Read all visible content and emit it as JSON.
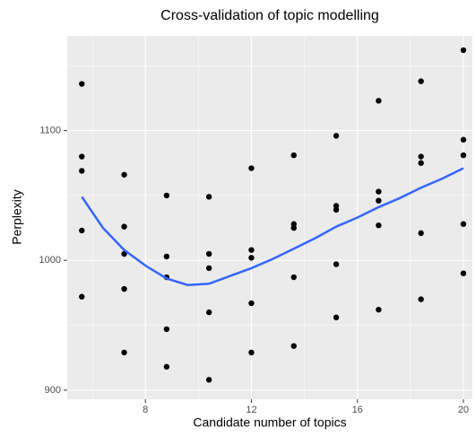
{
  "chart_data": {
    "type": "scatter",
    "title": "Cross-validation of topic modelling",
    "x_label": "Candidate number of topics",
    "y_label": "Perplexity",
    "xlim": [
      5.05,
      20.34
    ],
    "ylim": [
      893,
      1173
    ],
    "xticks": [
      8,
      12,
      16,
      20
    ],
    "yticks": [
      900,
      1000,
      1100
    ],
    "minor_xticks": [
      6,
      10,
      14,
      18
    ],
    "minor_yticks": [
      950,
      1050,
      1150
    ],
    "grid": true,
    "point_color": "#000000",
    "points": {
      "x": [
        5.6,
        5.6,
        5.6,
        5.6,
        5.6,
        7.2,
        7.2,
        7.2,
        7.2,
        7.2,
        8.8,
        8.8,
        8.8,
        8.8,
        8.8,
        10.4,
        10.4,
        10.4,
        10.4,
        10.4,
        12,
        12,
        12,
        12,
        12,
        13.6,
        13.6,
        13.6,
        13.6,
        13.6,
        15.2,
        15.2,
        15.2,
        15.2,
        15.2,
        16.8,
        16.8,
        16.8,
        16.8,
        16.8,
        18.4,
        18.4,
        18.4,
        18.4,
        18.4,
        20,
        20,
        20,
        20,
        20
      ],
      "values": [
        1136,
        1080,
        1069,
        1023,
        972,
        1066,
        1026,
        1005,
        978,
        929,
        1050,
        1003,
        987,
        947,
        918,
        1049,
        1005,
        994,
        960,
        908,
        1071,
        1008,
        1002,
        967,
        929,
        1081,
        1028,
        1025,
        987,
        934,
        1096,
        1042,
        1039,
        997,
        956,
        1123,
        1053,
        1046,
        1027,
        962,
        1138,
        1080,
        1075,
        1021,
        970,
        1162,
        1093,
        1081,
        1028,
        990
      ]
    },
    "trend": {
      "color": "#3366ff",
      "x": [
        5.6,
        6.4,
        7.2,
        8.0,
        8.8,
        9.6,
        10.4,
        11.2,
        12,
        12.8,
        13.6,
        14.4,
        15.2,
        16.0,
        16.8,
        17.6,
        18.4,
        19.2,
        20
      ],
      "values": [
        1049,
        1025,
        1008,
        996,
        986,
        981,
        982,
        988,
        994,
        1001,
        1009,
        1017,
        1026,
        1033,
        1041,
        1048,
        1056,
        1063,
        1071
      ]
    }
  }
}
